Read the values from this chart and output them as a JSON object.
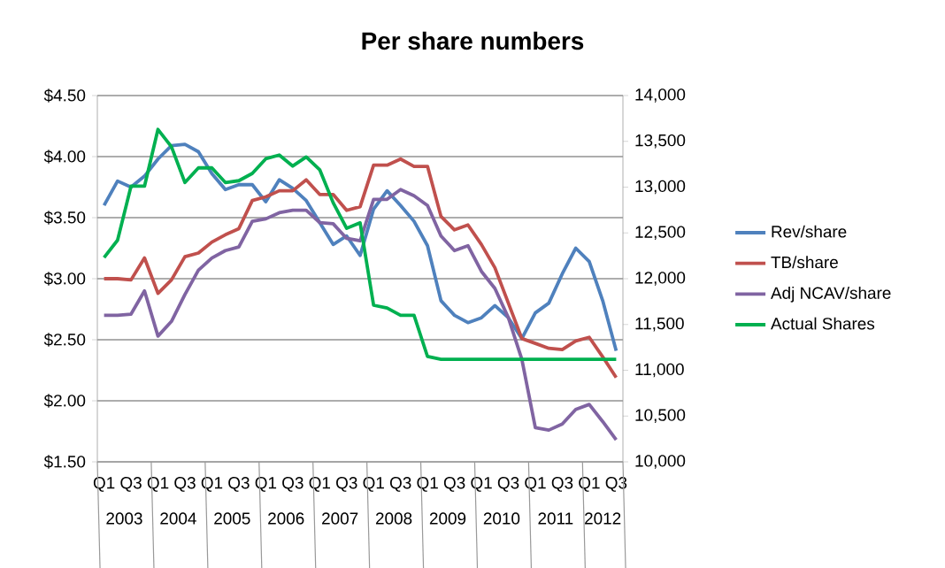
{
  "chart_data": {
    "type": "line",
    "title": "Per share numbers",
    "categories": [
      "Q1",
      null,
      "Q3",
      null,
      "Q1",
      null,
      "Q3",
      null,
      "Q1",
      null,
      "Q3",
      null,
      "Q1",
      null,
      "Q3",
      null,
      "Q1",
      null,
      "Q3",
      null,
      "Q1",
      null,
      "Q3",
      null,
      "Q1",
      null,
      "Q3",
      null,
      "Q1",
      null,
      "Q3",
      null,
      "Q1",
      null,
      "Q3",
      null,
      "Q1",
      null,
      "Q3"
    ],
    "annotations": [
      "2003",
      "2004",
      "2005",
      "2006",
      "2007",
      "2008",
      "2009",
      "2010",
      "2011",
      "2012"
    ],
    "series": [
      {
        "name": "Rev/share",
        "color": "#4f81bd",
        "values": [
          3.6,
          3.8,
          3.75,
          3.84,
          3.98,
          4.09,
          4.1,
          4.04,
          3.86,
          3.73,
          3.77,
          3.77,
          3.63,
          3.81,
          3.74,
          3.64,
          3.46,
          3.28,
          3.35,
          3.19,
          3.57,
          3.72,
          3.6,
          3.47,
          3.27,
          2.82,
          2.7,
          2.64,
          2.68,
          2.78,
          2.68,
          2.51,
          2.72,
          2.8,
          3.04,
          3.25,
          3.14,
          2.82,
          2.41
        ]
      },
      {
        "name": "TB/share",
        "color": "#c0504d",
        "values": [
          3.0,
          3.0,
          2.99,
          3.17,
          2.88,
          2.99,
          3.18,
          3.21,
          3.3,
          3.36,
          3.41,
          3.64,
          3.67,
          3.72,
          3.72,
          3.81,
          3.69,
          3.69,
          3.56,
          3.59,
          3.93,
          3.93,
          3.98,
          3.92,
          3.92,
          3.51,
          3.4,
          3.44,
          3.28,
          3.09,
          2.8,
          2.51,
          2.47,
          2.43,
          2.42,
          2.49,
          2.52,
          2.36,
          2.19
        ]
      },
      {
        "name": "Adj NCAV/share",
        "color": "#8064a2",
        "values": [
          2.7,
          2.7,
          2.71,
          2.9,
          2.53,
          2.65,
          2.87,
          3.07,
          3.17,
          3.23,
          3.26,
          3.47,
          3.49,
          3.54,
          3.56,
          3.56,
          3.46,
          3.45,
          3.33,
          3.31,
          3.65,
          3.65,
          3.73,
          3.68,
          3.6,
          3.35,
          3.23,
          3.27,
          3.06,
          2.92,
          2.68,
          2.34,
          1.78,
          1.76,
          1.81,
          1.93,
          1.97,
          1.83,
          1.68
        ]
      },
      {
        "name": "Actual Shares",
        "color": "#00b050",
        "axis": "y2",
        "values": [
          12230,
          12420,
          13010,
          13010,
          13630,
          13440,
          13050,
          13210,
          13210,
          13050,
          13070,
          13150,
          13310,
          13350,
          13230,
          13330,
          13190,
          12830,
          12550,
          12610,
          11710,
          11680,
          11600,
          11600,
          11150,
          11120,
          11120,
          11120,
          11120,
          11120,
          11120,
          11120,
          11120,
          11120,
          11120,
          11120,
          11120,
          11120,
          11120
        ]
      }
    ],
    "ylim": [
      1.5,
      4.5
    ],
    "yticks": [
      {
        "value": 1.5,
        "label": "$1.50"
      },
      {
        "value": 2.0,
        "label": "$2.00"
      },
      {
        "value": 2.5,
        "label": "$2.50"
      },
      {
        "value": 3.0,
        "label": "$3.00"
      },
      {
        "value": 3.5,
        "label": "$3.50"
      },
      {
        "value": 4.0,
        "label": "$4.00"
      },
      {
        "value": 4.5,
        "label": "$4.50"
      }
    ],
    "y2lim": [
      10000,
      14000
    ],
    "y2ticks": [
      {
        "value": 10000,
        "label": "10,000"
      },
      {
        "value": 10500,
        "label": "10,500"
      },
      {
        "value": 11000,
        "label": "11,000"
      },
      {
        "value": 11500,
        "label": "11,500"
      },
      {
        "value": 12000,
        "label": "12,000"
      },
      {
        "value": 12500,
        "label": "12,500"
      },
      {
        "value": 13000,
        "label": "13,000"
      },
      {
        "value": 13500,
        "label": "13,500"
      },
      {
        "value": 14000,
        "label": "14,000"
      }
    ],
    "grid": "y",
    "legend": "right"
  }
}
